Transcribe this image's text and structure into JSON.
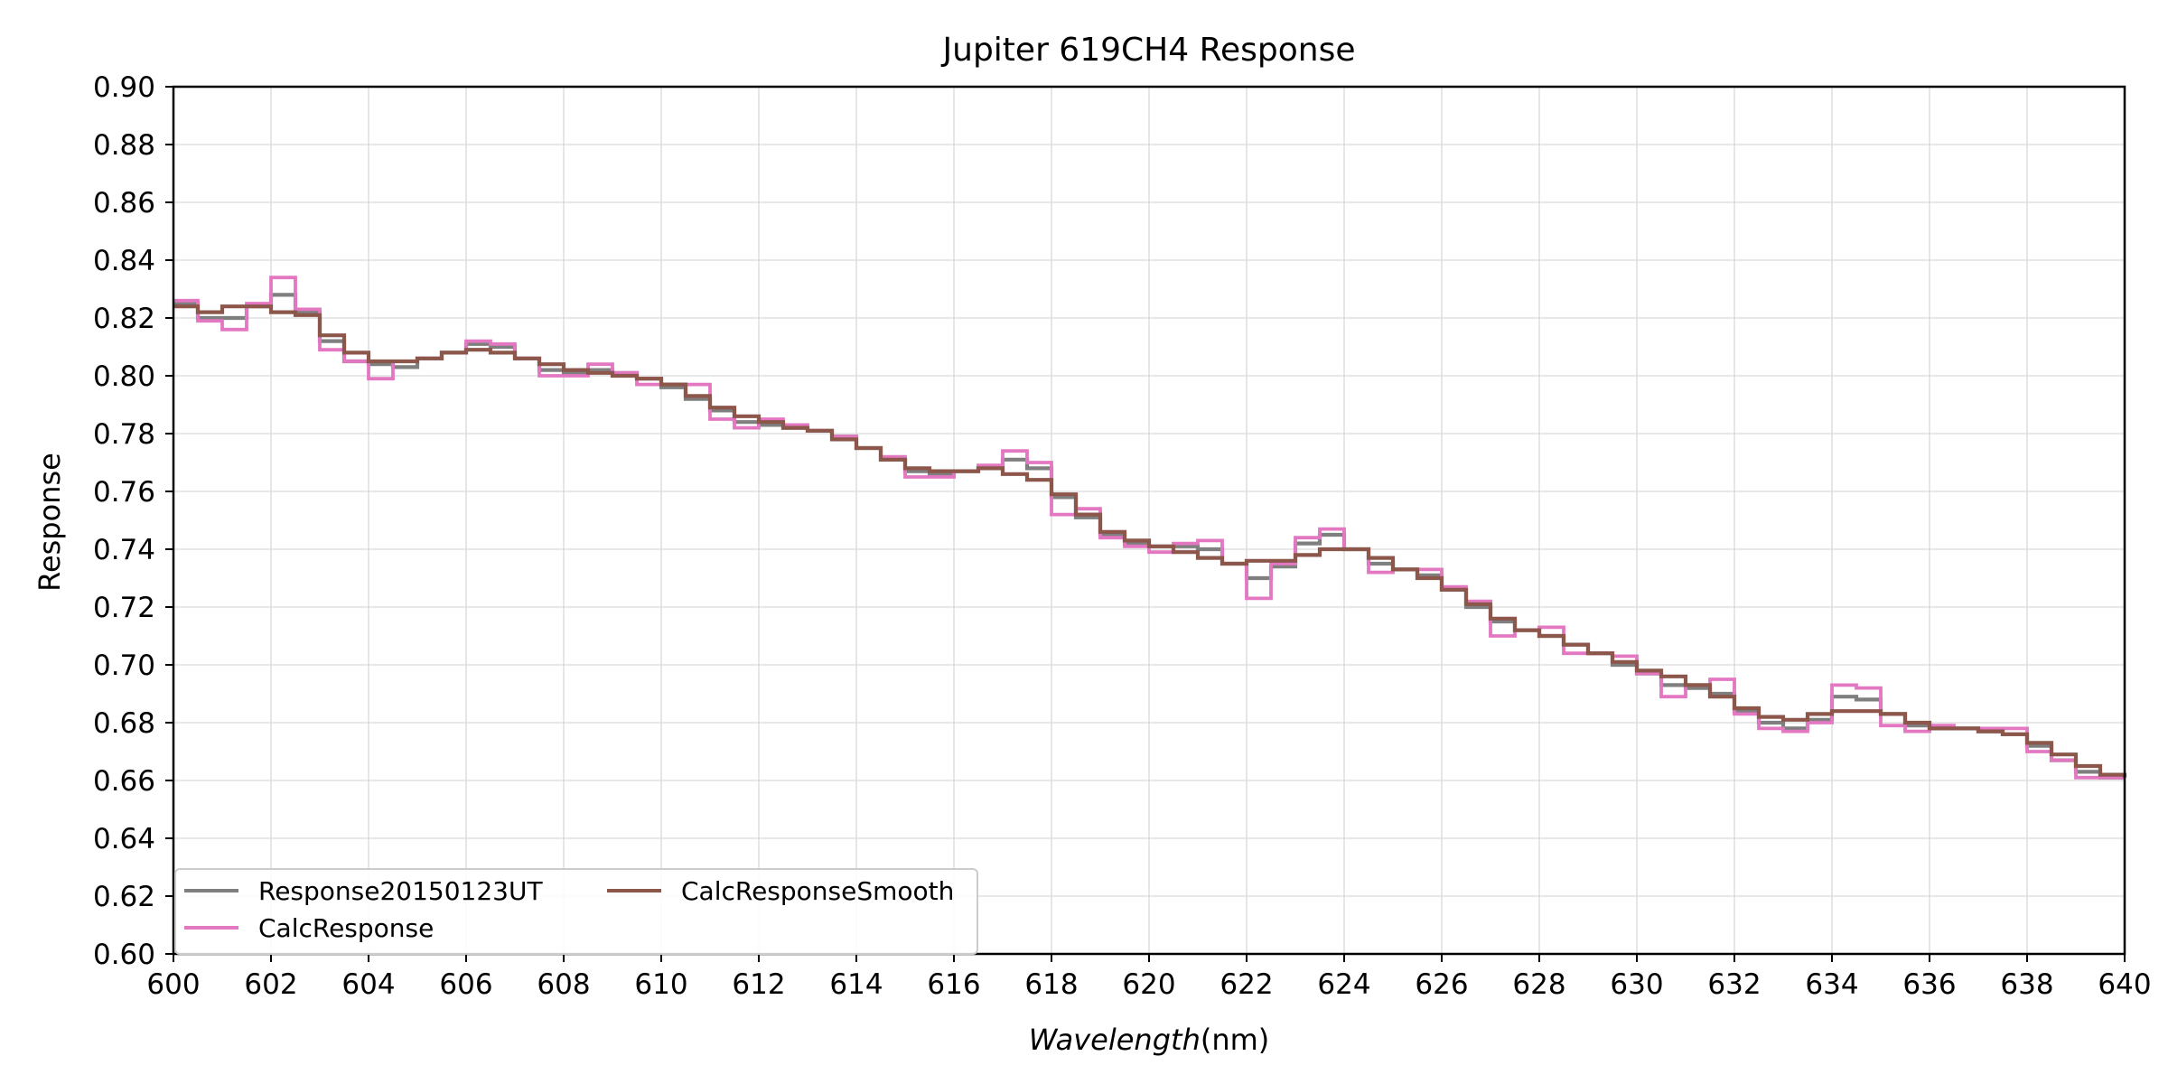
{
  "chart_data": {
    "type": "line",
    "step": true,
    "title": "Jupiter 619CH4 Response",
    "xlabel_main": "Wavelength",
    "xlabel_unit": "(nm)",
    "ylabel": "Response",
    "xlim": [
      600,
      640
    ],
    "ylim": [
      0.6,
      0.9
    ],
    "x_ticks": [
      600,
      602,
      604,
      606,
      608,
      610,
      612,
      614,
      616,
      618,
      620,
      622,
      624,
      626,
      628,
      630,
      632,
      634,
      636,
      638,
      640
    ],
    "y_ticks": [
      0.6,
      0.62,
      0.64,
      0.66,
      0.68,
      0.7,
      0.72,
      0.74,
      0.76,
      0.78,
      0.8,
      0.82,
      0.84,
      0.86,
      0.88,
      0.9
    ],
    "grid": true,
    "legend_position": "lower-left",
    "x": [
      600.0,
      600.5,
      601.0,
      601.5,
      602.0,
      602.5,
      603.0,
      603.5,
      604.0,
      604.5,
      605.0,
      605.5,
      606.0,
      606.5,
      607.0,
      607.5,
      608.0,
      608.5,
      609.0,
      609.5,
      610.0,
      610.5,
      611.0,
      611.5,
      612.0,
      612.5,
      613.0,
      613.5,
      614.0,
      614.5,
      615.0,
      615.5,
      616.0,
      616.5,
      617.0,
      617.5,
      618.0,
      618.5,
      619.0,
      619.5,
      620.0,
      620.5,
      621.0,
      621.5,
      622.0,
      622.5,
      623.0,
      623.5,
      624.0,
      624.5,
      625.0,
      625.5,
      626.0,
      626.5,
      627.0,
      627.5,
      628.0,
      628.5,
      629.0,
      629.5,
      630.0,
      630.5,
      631.0,
      631.5,
      632.0,
      632.5,
      633.0,
      633.5,
      634.0,
      634.5,
      635.0,
      635.5,
      636.0,
      636.5,
      637.0,
      637.5,
      638.0,
      638.5,
      639.0,
      639.5,
      640.0
    ],
    "series": [
      {
        "name": "Response20150123UT",
        "color": "#7f7f7f",
        "values": [
          0.825,
          0.82,
          0.82,
          0.824,
          0.828,
          0.822,
          0.812,
          0.805,
          0.804,
          0.803,
          0.806,
          0.808,
          0.811,
          0.81,
          0.806,
          0.802,
          0.801,
          0.802,
          0.801,
          0.799,
          0.796,
          0.792,
          0.788,
          0.784,
          0.783,
          0.782,
          0.781,
          0.779,
          0.775,
          0.771,
          0.767,
          0.766,
          0.767,
          0.768,
          0.771,
          0.768,
          0.758,
          0.751,
          0.745,
          0.742,
          0.741,
          0.741,
          0.74,
          0.735,
          0.73,
          0.734,
          0.742,
          0.745,
          0.74,
          0.735,
          0.733,
          0.731,
          0.726,
          0.72,
          0.715,
          0.712,
          0.71,
          0.707,
          0.704,
          0.7,
          0.697,
          0.693,
          0.692,
          0.69,
          0.684,
          0.68,
          0.678,
          0.681,
          0.689,
          0.688,
          0.683,
          0.679,
          0.678,
          0.678,
          0.677,
          0.676,
          0.672,
          0.667,
          0.663,
          0.661,
          0.661
        ]
      },
      {
        "name": "CalcResponse",
        "color": "#e377c2",
        "values": [
          0.826,
          0.819,
          0.816,
          0.825,
          0.834,
          0.823,
          0.809,
          0.805,
          0.799,
          0.805,
          0.806,
          0.808,
          0.812,
          0.811,
          0.806,
          0.8,
          0.8,
          0.804,
          0.801,
          0.797,
          0.797,
          0.797,
          0.785,
          0.782,
          0.785,
          0.783,
          0.781,
          0.779,
          0.775,
          0.772,
          0.765,
          0.765,
          0.767,
          0.769,
          0.774,
          0.77,
          0.752,
          0.754,
          0.744,
          0.741,
          0.739,
          0.742,
          0.743,
          0.735,
          0.723,
          0.735,
          0.744,
          0.747,
          0.74,
          0.732,
          0.733,
          0.733,
          0.727,
          0.722,
          0.71,
          0.712,
          0.713,
          0.704,
          0.704,
          0.703,
          0.697,
          0.689,
          0.693,
          0.695,
          0.683,
          0.678,
          0.677,
          0.68,
          0.693,
          0.692,
          0.679,
          0.677,
          0.679,
          0.678,
          0.678,
          0.678,
          0.67,
          0.667,
          0.661,
          0.661,
          0.661
        ]
      },
      {
        "name": "CalcResponseSmooth",
        "color": "#8c564b",
        "values": [
          0.824,
          0.822,
          0.824,
          0.824,
          0.822,
          0.821,
          0.814,
          0.808,
          0.805,
          0.805,
          0.806,
          0.808,
          0.809,
          0.808,
          0.806,
          0.804,
          0.802,
          0.801,
          0.8,
          0.799,
          0.797,
          0.793,
          0.789,
          0.786,
          0.784,
          0.782,
          0.781,
          0.778,
          0.775,
          0.771,
          0.768,
          0.767,
          0.767,
          0.768,
          0.766,
          0.764,
          0.759,
          0.752,
          0.746,
          0.743,
          0.741,
          0.739,
          0.737,
          0.735,
          0.736,
          0.736,
          0.738,
          0.74,
          0.74,
          0.737,
          0.733,
          0.73,
          0.726,
          0.721,
          0.716,
          0.712,
          0.71,
          0.707,
          0.704,
          0.701,
          0.698,
          0.696,
          0.693,
          0.689,
          0.685,
          0.682,
          0.681,
          0.683,
          0.684,
          0.684,
          0.683,
          0.68,
          0.678,
          0.678,
          0.677,
          0.676,
          0.673,
          0.669,
          0.665,
          0.662,
          0.661
        ]
      }
    ]
  }
}
